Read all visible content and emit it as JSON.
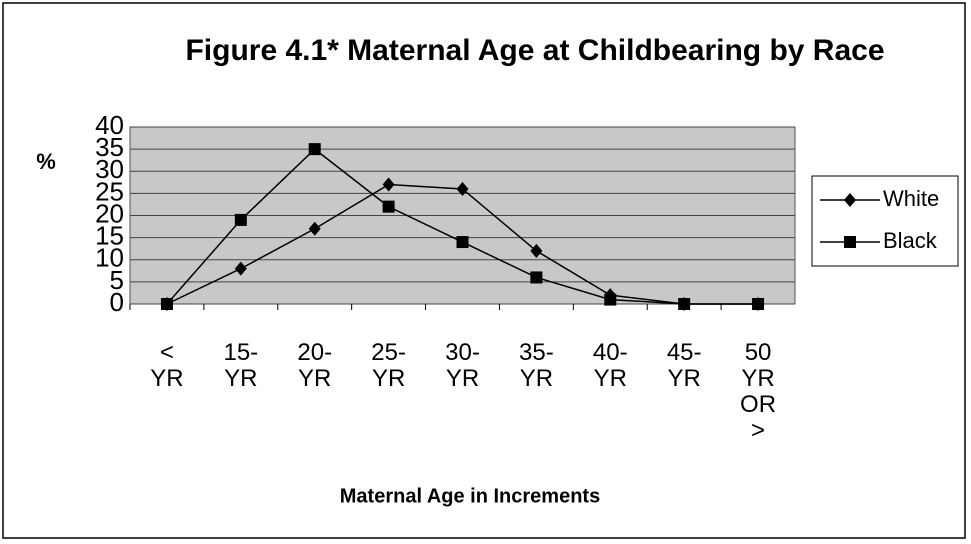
{
  "chart_data": {
    "type": "line",
    "title": "Figure 4.1*  Maternal Age at Childbearing by Race",
    "ylabel": "%",
    "xlabel": "Maternal Age in  Increments",
    "categories": [
      "< YR",
      "15- YR",
      "20- YR",
      "25- YR",
      "30- YR",
      "35- YR",
      "40- YR",
      "45- YR",
      "50 YR OR >"
    ],
    "series": [
      {
        "name": "White",
        "color": "#000000",
        "marker": "diamond",
        "values": [
          0,
          8,
          17,
          27,
          26,
          12,
          2,
          0,
          0
        ]
      },
      {
        "name": "Black",
        "color": "#000000",
        "marker": "square",
        "values": [
          0,
          19,
          35,
          22,
          14,
          6,
          1,
          0,
          0
        ]
      }
    ],
    "ylim": [
      0,
      40
    ],
    "yticks": [
      0,
      5,
      10,
      15,
      20,
      25,
      30,
      35,
      40
    ],
    "grid": true,
    "legend": "right"
  }
}
